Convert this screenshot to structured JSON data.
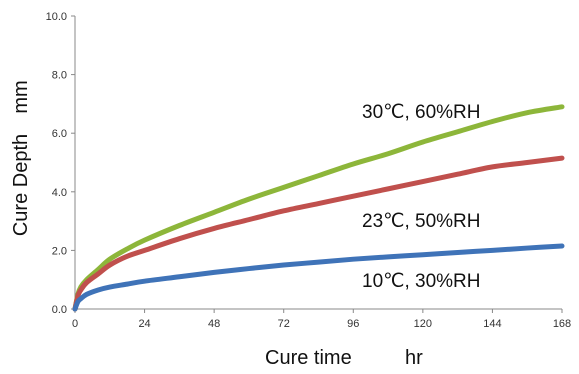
{
  "chart_data": {
    "type": "line",
    "xlabel": "Cure time",
    "xunit": "hr",
    "ylabel": "Cure Depth",
    "yunit": "mm",
    "xlim": [
      0,
      168
    ],
    "ylim": [
      0,
      10
    ],
    "x_ticks": [
      "0",
      "24",
      "48",
      "72",
      "96",
      "120",
      "144",
      "168"
    ],
    "y_ticks": [
      "0.0",
      "2.0",
      "4.0",
      "6.0",
      "8.0",
      "10.0"
    ],
    "grid": false,
    "legend": "none",
    "series": [
      {
        "name": "30℃, 60%RH",
        "color": "#8db63a",
        "x": [
          0,
          1,
          2,
          4,
          8,
          12,
          18,
          24,
          36,
          48,
          60,
          72,
          84,
          96,
          108,
          120,
          132,
          144,
          156,
          168
        ],
        "y": [
          0,
          0.5,
          0.75,
          1.0,
          1.35,
          1.7,
          2.05,
          2.35,
          2.85,
          3.3,
          3.75,
          4.15,
          4.55,
          4.95,
          5.3,
          5.7,
          6.05,
          6.4,
          6.7,
          6.9
        ]
      },
      {
        "name": "23℃, 50%RH",
        "color": "#c0504d",
        "x": [
          0,
          1,
          2,
          4,
          8,
          12,
          18,
          24,
          36,
          48,
          60,
          72,
          84,
          96,
          108,
          120,
          132,
          144,
          156,
          168
        ],
        "y": [
          0,
          0.45,
          0.65,
          0.9,
          1.2,
          1.5,
          1.8,
          2.0,
          2.4,
          2.75,
          3.05,
          3.35,
          3.6,
          3.85,
          4.1,
          4.35,
          4.6,
          4.85,
          5.0,
          5.15
        ]
      },
      {
        "name": "10℃, 30%RH",
        "color": "#3f73b8",
        "x": [
          0,
          1,
          2,
          4,
          8,
          12,
          18,
          24,
          36,
          48,
          60,
          72,
          84,
          96,
          108,
          120,
          132,
          144,
          156,
          168
        ],
        "y": [
          0,
          0.25,
          0.35,
          0.5,
          0.65,
          0.75,
          0.85,
          0.95,
          1.1,
          1.25,
          1.38,
          1.5,
          1.6,
          1.7,
          1.78,
          1.85,
          1.93,
          2.0,
          2.08,
          2.15
        ]
      }
    ]
  }
}
